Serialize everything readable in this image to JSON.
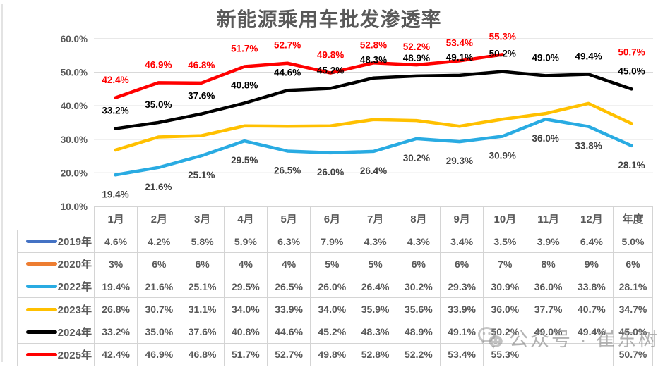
{
  "title": "新能源乘用车批发渗透率",
  "watermark": {
    "icon": "wechat-icon",
    "text": "公众号 · 崔东树"
  },
  "colors": {
    "grid": "#d9d9d9",
    "axis_text": "#595959",
    "table_text": "#595959"
  },
  "chart_data": {
    "type": "line",
    "title": "新能源乘用车批发渗透率",
    "categories": [
      "1月",
      "2月",
      "3月",
      "4月",
      "5月",
      "6月",
      "7月",
      "8月",
      "9月",
      "10月",
      "11月",
      "12月",
      "年度"
    ],
    "y_axis": {
      "min": 10,
      "max": 60,
      "tick_step": 10,
      "tick_labels": [
        "60.0%",
        "50.0%",
        "40.0%",
        "30.0%",
        "20.0%",
        "10.0%"
      ]
    },
    "grid": true,
    "legend_position": "table-row-headers",
    "series": [
      {
        "name": "2019年",
        "color": "#4472C4",
        "plotted": false,
        "data_labels": "none",
        "values": [
          4.6,
          4.2,
          5.8,
          5.9,
          6.3,
          7.9,
          4.3,
          4.3,
          3.4,
          3.5,
          3.9,
          6.4,
          5.0
        ],
        "display": [
          "4.6%",
          "4.2%",
          "5.8%",
          "5.9%",
          "6.3%",
          "7.9%",
          "4.3%",
          "4.3%",
          "3.4%",
          "3.5%",
          "3.9%",
          "6.4%",
          "5.0%"
        ]
      },
      {
        "name": "2020年",
        "color": "#ED7D31",
        "plotted": false,
        "data_labels": "none",
        "values": [
          3,
          6,
          6,
          4,
          4,
          5,
          5,
          6,
          6,
          7,
          8,
          9,
          6
        ],
        "display": [
          "3%",
          "6%",
          "6%",
          "4%",
          "4%",
          "5%",
          "5%",
          "6%",
          "6%",
          "7%",
          "8%",
          "9%",
          "6%"
        ]
      },
      {
        "name": "2022年",
        "color": "#29ABE2",
        "plotted": true,
        "data_labels": "below",
        "label_color": "#404040",
        "values": [
          19.4,
          21.6,
          25.1,
          29.5,
          26.5,
          26.0,
          26.4,
          30.2,
          29.3,
          30.9,
          36.0,
          33.8,
          28.1
        ],
        "display": [
          "19.4%",
          "21.6%",
          "25.1%",
          "29.5%",
          "26.5%",
          "26.0%",
          "26.4%",
          "30.2%",
          "29.3%",
          "30.9%",
          "36.0%",
          "33.8%",
          "28.1%"
        ]
      },
      {
        "name": "2023年",
        "color": "#FFC000",
        "plotted": true,
        "data_labels": "none",
        "values": [
          26.8,
          30.7,
          31.1,
          34.0,
          33.9,
          34.0,
          35.9,
          35.6,
          33.9,
          36.0,
          37.7,
          40.7,
          34.7
        ],
        "display": [
          "26.8%",
          "30.7%",
          "31.1%",
          "34.0%",
          "33.9%",
          "34.0%",
          "35.9%",
          "35.6%",
          "33.9%",
          "36.0%",
          "37.7%",
          "40.7%",
          "34.7%"
        ]
      },
      {
        "name": "2024年",
        "color": "#000000",
        "plotted": true,
        "data_labels": "above",
        "label_color": "#000000",
        "values": [
          33.2,
          35.0,
          37.6,
          40.8,
          44.6,
          45.2,
          48.3,
          48.9,
          49.1,
          50.2,
          49.0,
          49.4,
          45.0
        ],
        "display": [
          "33.2%",
          "35.0%",
          "37.6%",
          "40.8%",
          "44.6%",
          "45.2%",
          "48.3%",
          "48.9%",
          "49.1%",
          "50.2%",
          "49.0%",
          "49.4%",
          "45.0%"
        ]
      },
      {
        "name": "2025年",
        "color": "#FF0000",
        "plotted": true,
        "data_labels": "above",
        "label_color": "#FF0000",
        "values": [
          42.4,
          46.9,
          46.8,
          51.7,
          52.7,
          49.8,
          52.8,
          52.2,
          53.4,
          55.3,
          null,
          null,
          50.7
        ],
        "display": [
          "42.4%",
          "46.9%",
          "46.8%",
          "51.7%",
          "52.7%",
          "49.8%",
          "52.8%",
          "52.2%",
          "53.4%",
          "55.3%",
          "",
          "",
          "50.7%"
        ]
      }
    ]
  }
}
